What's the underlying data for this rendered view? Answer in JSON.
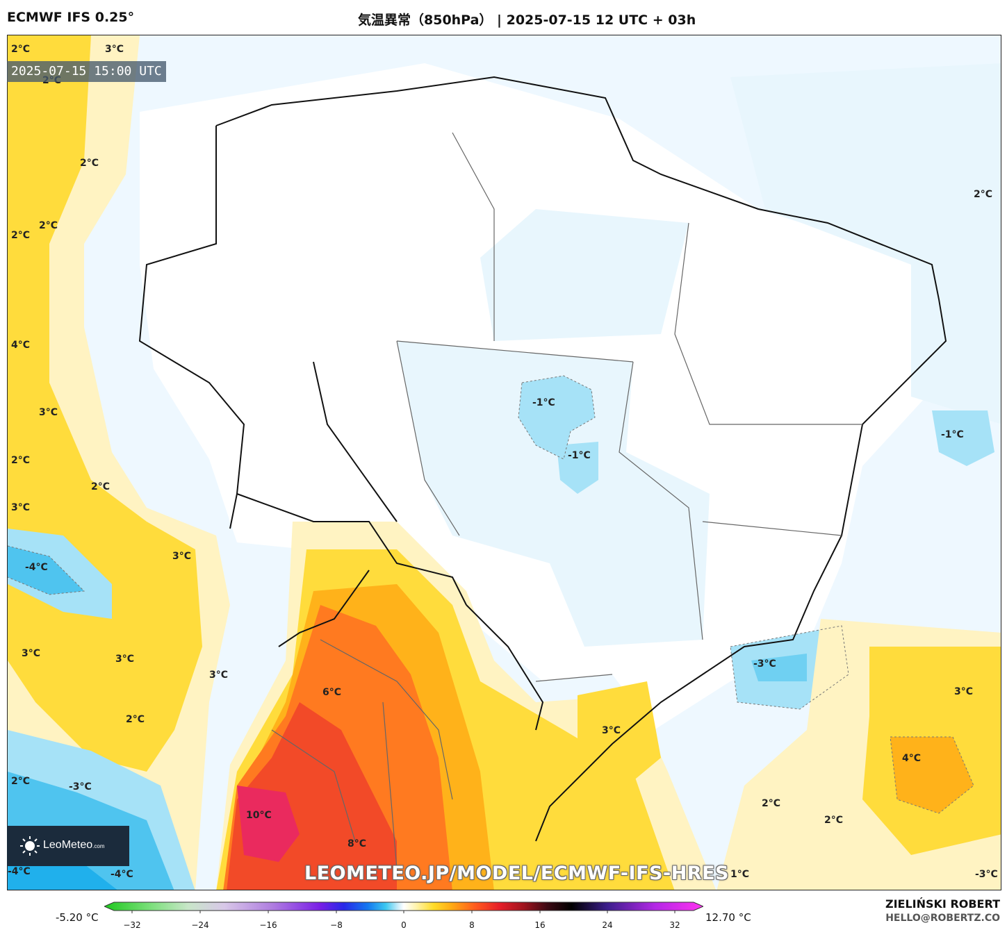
{
  "header": {
    "model": "ECMWF IFS 0.25°",
    "title": "気温異常（850hPa） | 2025-07-15 12 UTC + 03h"
  },
  "timestamp": "2025-07-15 15:00 UTC",
  "watermark_url": "LEOMETEO.JP/MODEL/ECMWF-IFS-HRES",
  "logo": {
    "name": "LeoMeteo",
    "suffix": ".com"
  },
  "footer": {
    "author": "ZIELIŃSKI ROBERT",
    "email": "HELLO@ROBERTZ.CO"
  },
  "colorbar": {
    "min_label": "-5.20 °C",
    "max_label": "12.70 °C",
    "ticks": [
      "−32",
      "−24",
      "−16",
      "−8",
      "0",
      "8",
      "16",
      "24",
      "32"
    ]
  },
  "map_labels": [
    {
      "text": "2°C"
    },
    {
      "text": "3°C"
    },
    {
      "text": "2°C"
    },
    {
      "text": "2°C"
    },
    {
      "text": "2°C"
    },
    {
      "text": "2°C"
    },
    {
      "text": "4°C"
    },
    {
      "text": "3°C"
    },
    {
      "text": "2°C"
    },
    {
      "text": "2°C"
    },
    {
      "text": "3°C"
    },
    {
      "text": "-4°C"
    },
    {
      "text": "3°C"
    },
    {
      "text": "3°C"
    },
    {
      "text": "3°C"
    },
    {
      "text": "3°C"
    },
    {
      "text": "2°C"
    },
    {
      "text": "6°C"
    },
    {
      "text": "2°C"
    },
    {
      "text": "-3°C"
    },
    {
      "text": "10°C"
    },
    {
      "text": "8°C"
    },
    {
      "text": "-4°C"
    },
    {
      "text": "-4°C"
    },
    {
      "text": "-1°C"
    },
    {
      "text": "-1°C"
    },
    {
      "text": "-1°C"
    },
    {
      "text": "2°C"
    },
    {
      "text": "-3°C"
    },
    {
      "text": "3°C"
    },
    {
      "text": "3°C"
    },
    {
      "text": "4°C"
    },
    {
      "text": "2°C"
    },
    {
      "text": "2°C"
    },
    {
      "text": "1°C"
    },
    {
      "text": "-3°C"
    }
  ],
  "colors": {
    "cold_light": "#e8f6fd",
    "cold_mid": "#a6e2f7",
    "cold_strong": "#4fc4ef",
    "warm_light": "#fff3c2",
    "warm_mid": "#ffdc3c",
    "warm_strong": "#ffb21a",
    "hot": "#ff7a20",
    "very_hot": "#f24a28",
    "extreme": "#ea2a5e"
  }
}
